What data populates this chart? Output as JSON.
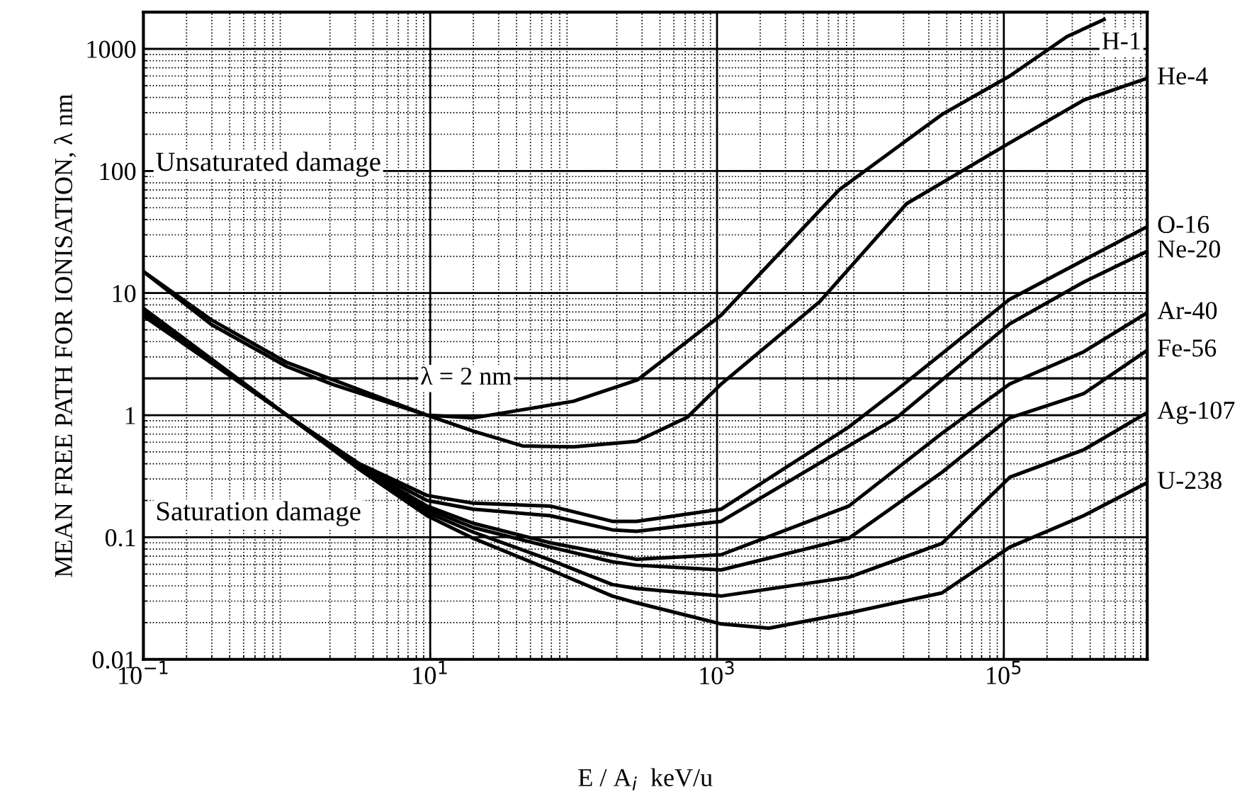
{
  "chart_data": {
    "type": "line",
    "xlabel": "E / A$_{i}$  keV/u",
    "ylabel": "MEAN FREE PATH FOR IONISATION, λ nm",
    "log": "xy",
    "grid": true,
    "legend": false,
    "marker": "none",
    "line_style": "solid",
    "xlim": [
      0.1,
      1000000
    ],
    "ylim": [
      0.01,
      2000
    ],
    "xticks": [
      {
        "value": 0.1,
        "label": "10$^{−1}$"
      },
      {
        "value": 10,
        "label": "10$^{1}$"
      },
      {
        "value": 1000,
        "label": "10$^{3}$"
      },
      {
        "value": 100000,
        "label": "10$^{5}$"
      }
    ],
    "yticks": [
      0.01,
      0.1,
      1,
      10,
      100,
      1000
    ],
    "ref_lines": [
      {
        "axis": "y",
        "value": 2,
        "label": "λ = 2 nm",
        "color": "#000000"
      }
    ],
    "annotations": [
      "Unsaturated damage",
      "Saturation damage"
    ],
    "series": [
      {
        "name": "H-1",
        "color": "#000000",
        "x": [
          0.1,
          0.3,
          1,
          2.1,
          9.5,
          20,
          100,
          280,
          1070,
          7100,
          37000,
          110000,
          275000,
          500000
        ],
        "values": [
          15,
          6,
          2.7,
          1.95,
          1.0,
          0.95,
          1.3,
          1.95,
          6.6,
          70,
          290,
          600,
          1260,
          1740
        ]
      },
      {
        "name": "He-4",
        "color": "#000000",
        "x": [
          0.1,
          0.3,
          1,
          2.1,
          9.5,
          20,
          44,
          100,
          275,
          620,
          1070,
          5200,
          21000,
          110000,
          360000,
          1000000
        ],
        "values": [
          15,
          5.5,
          2.5,
          1.78,
          1.0,
          0.74,
          0.56,
          0.55,
          0.61,
          0.96,
          1.8,
          8.5,
          54,
          170,
          380,
          575
        ]
      },
      {
        "name": "O-16",
        "color": "#000000",
        "x": [
          0.1,
          1,
          3.2,
          9.5,
          20,
          69,
          186,
          275,
          1070,
          8300,
          17800,
          110000,
          360000,
          1000000
        ],
        "values": [
          7.5,
          1.0,
          0.4,
          0.22,
          0.19,
          0.18,
          0.135,
          0.135,
          0.17,
          0.8,
          1.6,
          8.9,
          18.6,
          35
        ]
      },
      {
        "name": "Ne-20",
        "color": "#000000",
        "x": [
          0.1,
          1,
          3.2,
          9.5,
          20,
          69,
          186,
          275,
          1070,
          8300,
          17800,
          110000,
          360000,
          1000000
        ],
        "values": [
          7.3,
          1.0,
          0.39,
          0.2,
          0.17,
          0.15,
          0.115,
          0.112,
          0.135,
          0.56,
          0.95,
          5.6,
          12.3,
          22
        ]
      },
      {
        "name": "Ar-40",
        "color": "#000000",
        "x": [
          0.1,
          1,
          3.2,
          9.5,
          20,
          69,
          186,
          275,
          1070,
          8300,
          37000,
          110000,
          360000,
          1000000
        ],
        "values": [
          7.0,
          1.0,
          0.38,
          0.18,
          0.13,
          0.09,
          0.072,
          0.066,
          0.072,
          0.18,
          0.71,
          1.8,
          3.3,
          6.9
        ]
      },
      {
        "name": "Fe-56",
        "color": "#000000",
        "x": [
          0.1,
          1,
          3.2,
          9.5,
          20,
          69,
          186,
          275,
          1070,
          8300,
          37000,
          110000,
          360000,
          1000000
        ],
        "values": [
          6.9,
          1.0,
          0.38,
          0.17,
          0.12,
          0.083,
          0.063,
          0.059,
          0.054,
          0.098,
          0.34,
          0.95,
          1.5,
          3.4
        ]
      },
      {
        "name": "Ag-107",
        "color": "#000000",
        "x": [
          0.1,
          1,
          3.2,
          9.5,
          20,
          69,
          186,
          275,
          1070,
          8300,
          37000,
          110000,
          360000,
          1000000
        ],
        "values": [
          6.7,
          1.0,
          0.37,
          0.16,
          0.11,
          0.065,
          0.041,
          0.038,
          0.033,
          0.047,
          0.089,
          0.31,
          0.52,
          1.05
        ]
      },
      {
        "name": "U-238",
        "color": "#000000",
        "x": [
          0.1,
          1,
          3.2,
          9.5,
          20,
          69,
          186,
          275,
          1070,
          2300,
          8300,
          37000,
          110000,
          360000,
          1000000
        ],
        "values": [
          6.5,
          1.0,
          0.36,
          0.15,
          0.098,
          0.054,
          0.033,
          0.029,
          0.0195,
          0.018,
          0.024,
          0.035,
          0.083,
          0.15,
          0.28
        ]
      }
    ]
  }
}
